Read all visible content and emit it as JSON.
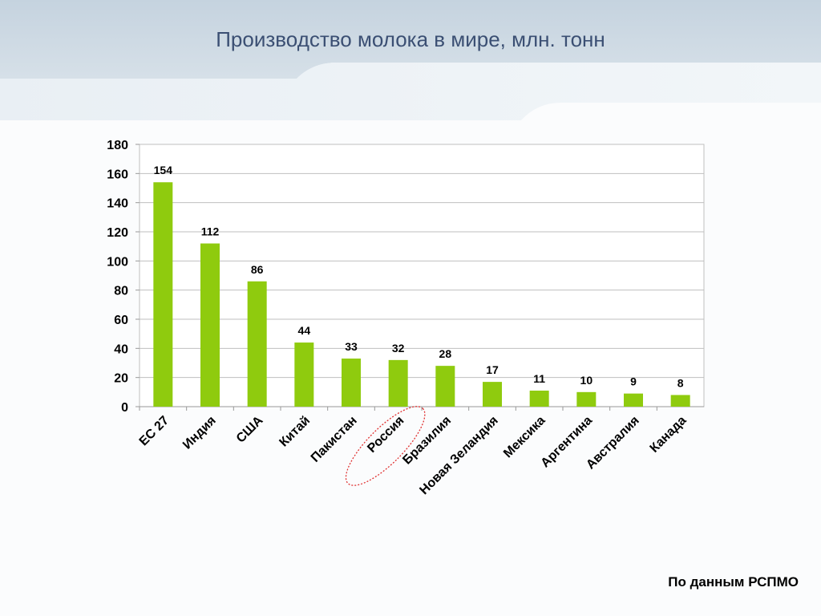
{
  "slide": {
    "title": "Производство молока в мире, млн. тонн",
    "source": "По данным РСПМО"
  },
  "chart_data": {
    "type": "bar",
    "categories": [
      "ЕС 27",
      "Индия",
      "США",
      "Китай",
      "Пакистан",
      "Россия",
      "Бразилия",
      "Новая Зеландия",
      "Мексика",
      "Аргентина",
      "Австралия",
      "Канада"
    ],
    "values": [
      154,
      112,
      86,
      44,
      33,
      32,
      28,
      17,
      11,
      10,
      9,
      8
    ],
    "data_labels": [
      "154",
      "112",
      "86",
      "44",
      "33",
      "32",
      "28",
      "17",
      "11",
      "10",
      "9",
      "8"
    ],
    "ylim": [
      0,
      180
    ],
    "yticks": [
      "0",
      "20",
      "40",
      "60",
      "80",
      "100",
      "120",
      "140",
      "160",
      "180"
    ],
    "grid": true,
    "bar_color": "#8fcb0e",
    "highlighted_category": "Россия",
    "highlight_color": "#e03030"
  }
}
